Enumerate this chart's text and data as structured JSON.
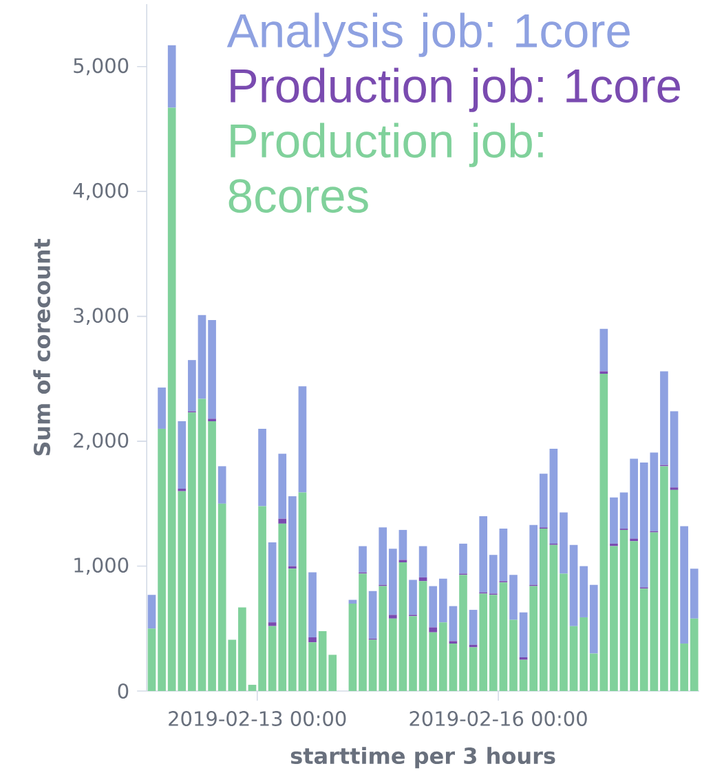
{
  "chart_data": {
    "type": "bar",
    "stacked": true,
    "xlabel": "starttime per 3 hours",
    "ylabel": "Sum of corecount",
    "x": [
      "2019-02-11T16:30",
      "2019-02-11T19:30",
      "2019-02-11T22:30",
      "2019-02-12T01:30",
      "2019-02-12T04:30",
      "2019-02-12T07:30",
      "2019-02-12T10:30",
      "2019-02-12T13:30",
      "2019-02-12T16:30",
      "2019-02-12T19:30",
      "2019-02-12T22:30",
      "2019-02-13T01:30",
      "2019-02-13T04:30",
      "2019-02-13T07:30",
      "2019-02-13T10:30",
      "2019-02-13T13:30",
      "2019-02-13T16:30",
      "2019-02-13T19:30",
      "2019-02-13T22:30",
      "2019-02-14T01:30",
      "2019-02-14T04:30",
      "2019-02-14T07:30",
      "2019-02-14T10:30",
      "2019-02-14T13:30",
      "2019-02-14T16:30",
      "2019-02-14T19:30",
      "2019-02-14T22:30",
      "2019-02-15T01:30",
      "2019-02-15T04:30",
      "2019-02-15T07:30",
      "2019-02-15T10:30",
      "2019-02-15T13:30",
      "2019-02-15T16:30",
      "2019-02-15T19:30",
      "2019-02-15T22:30",
      "2019-02-16T01:30",
      "2019-02-16T04:30",
      "2019-02-16T07:30",
      "2019-02-16T10:30",
      "2019-02-16T13:30",
      "2019-02-16T16:30",
      "2019-02-16T19:30",
      "2019-02-16T22:30",
      "2019-02-17T01:30",
      "2019-02-17T04:30",
      "2019-02-17T07:30",
      "2019-02-17T10:30",
      "2019-02-17T13:30",
      "2019-02-17T16:30",
      "2019-02-17T19:30",
      "2019-02-17T22:30",
      "2019-02-18T01:30",
      "2019-02-18T04:30",
      "2019-02-18T07:30",
      "2019-02-18T10:30"
    ],
    "series": [
      {
        "name": "Production job: 8cores",
        "color": "#80d19b",
        "values": [
          500,
          2100,
          4670,
          1600,
          2230,
          2340,
          2160,
          1500,
          410,
          670,
          50,
          1480,
          520,
          1340,
          980,
          1590,
          390,
          480,
          290,
          null,
          700,
          940,
          410,
          840,
          580,
          1030,
          600,
          880,
          470,
          550,
          380,
          930,
          350,
          780,
          770,
          870,
          570,
          250,
          840,
          1300,
          1170,
          940,
          520,
          590,
          300,
          2540,
          1160,
          1290,
          1200,
          820,
          1270,
          1800,
          1610,
          380,
          580
        ]
      },
      {
        "name": "Production job: 1core",
        "color": "#7a4bb0",
        "values": [
          null,
          null,
          null,
          20,
          10,
          null,
          20,
          null,
          null,
          null,
          null,
          null,
          30,
          40,
          20,
          null,
          40,
          null,
          null,
          null,
          null,
          10,
          10,
          10,
          30,
          20,
          10,
          30,
          40,
          null,
          20,
          10,
          20,
          10,
          10,
          10,
          null,
          20,
          10,
          10,
          10,
          null,
          null,
          null,
          null,
          20,
          20,
          10,
          20,
          10,
          10,
          10,
          20,
          null,
          null
        ]
      },
      {
        "name": "Analysis job: 1core",
        "color": "#8ea1e1",
        "values": [
          270,
          330,
          500,
          540,
          410,
          670,
          790,
          300,
          null,
          null,
          null,
          620,
          640,
          520,
          560,
          850,
          520,
          null,
          null,
          null,
          30,
          210,
          380,
          460,
          530,
          240,
          280,
          250,
          330,
          350,
          280,
          240,
          280,
          610,
          310,
          420,
          360,
          360,
          480,
          430,
          760,
          490,
          650,
          410,
          550,
          340,
          370,
          290,
          640,
          1000,
          630,
          750,
          610,
          940,
          400
        ]
      }
    ],
    "xlim": [
      "2019-02-11T15:00",
      "2019-02-18T12:00"
    ],
    "xticks": [
      {
        "value": "2019-02-13T00:00",
        "label": "2019-02-13 00:00"
      },
      {
        "value": "2019-02-16T00:00",
        "label": "2019-02-16 00:00"
      }
    ],
    "ylim": [
      0,
      5500
    ],
    "yticks": [
      0,
      {
        "value": 1000,
        "label": "1,000"
      },
      {
        "value": 2000,
        "label": "2,000"
      },
      {
        "value": 3000,
        "label": "3,000"
      },
      {
        "value": 4000,
        "label": "4,000"
      },
      {
        "value": 5000,
        "label": "5,000"
      }
    ],
    "legend": "top right"
  }
}
